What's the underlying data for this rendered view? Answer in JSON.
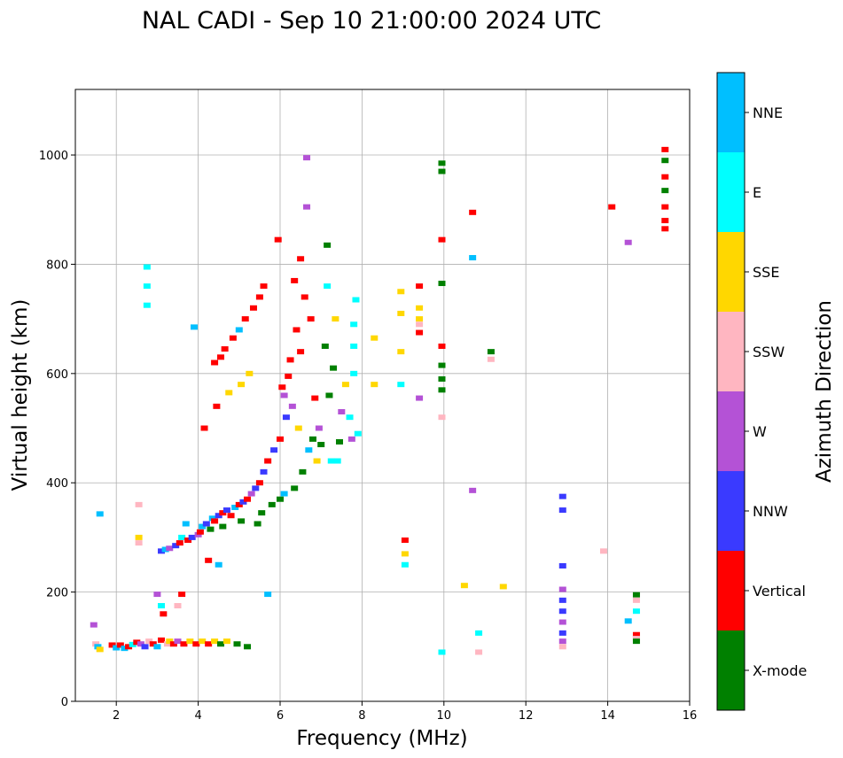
{
  "chart_data": {
    "type": "scatter",
    "title": "NAL CADI - Sep 10 21:00:00 2024 UTC",
    "xlabel": "Frequency (MHz)",
    "ylabel": "Virtual height (km)",
    "xlim": [
      1,
      16
    ],
    "ylim": [
      0,
      1120
    ],
    "xticks": [
      2,
      4,
      6,
      8,
      10,
      12,
      14,
      16
    ],
    "yticks": [
      0,
      200,
      400,
      600,
      800,
      1000
    ],
    "grid": true,
    "colorbar": {
      "label": "Azimuth Direction",
      "categories": [
        {
          "name": "X-mode",
          "color": "#008000"
        },
        {
          "name": "Vertical",
          "color": "#ff0000"
        },
        {
          "name": "NNW",
          "color": "#3a3aff"
        },
        {
          "name": "W",
          "color": "#b452d6"
        },
        {
          "name": "SSW",
          "color": "#ffb6c1"
        },
        {
          "name": "SSE",
          "color": "#ffd700"
        },
        {
          "name": "E",
          "color": "#00ffff"
        },
        {
          "name": "NNE",
          "color": "#00bfff"
        }
      ]
    },
    "points": [
      {
        "f": 1.45,
        "h": 140,
        "d": "W"
      },
      {
        "f": 1.5,
        "h": 105,
        "d": "SSW"
      },
      {
        "f": 1.55,
        "h": 100,
        "d": "NNE"
      },
      {
        "f": 1.6,
        "h": 95,
        "d": "SSE"
      },
      {
        "f": 1.6,
        "h": 343,
        "d": "NNE"
      },
      {
        "f": 1.9,
        "h": 103,
        "d": "Vertical"
      },
      {
        "f": 2.0,
        "h": 98,
        "d": "NNE"
      },
      {
        "f": 2.1,
        "h": 103,
        "d": "Vertical"
      },
      {
        "f": 2.2,
        "h": 97,
        "d": "NNE"
      },
      {
        "f": 2.3,
        "h": 100,
        "d": "Vertical"
      },
      {
        "f": 2.4,
        "h": 104,
        "d": "E"
      },
      {
        "f": 2.5,
        "h": 108,
        "d": "Vertical"
      },
      {
        "f": 2.55,
        "h": 300,
        "d": "SSE"
      },
      {
        "f": 2.55,
        "h": 290,
        "d": "SSW"
      },
      {
        "f": 2.55,
        "h": 360,
        "d": "SSW"
      },
      {
        "f": 2.6,
        "h": 105,
        "d": "W"
      },
      {
        "f": 2.7,
        "h": 100,
        "d": "NNW"
      },
      {
        "f": 2.75,
        "h": 725,
        "d": "E"
      },
      {
        "f": 2.75,
        "h": 760,
        "d": "E"
      },
      {
        "f": 2.75,
        "h": 795,
        "d": "E"
      },
      {
        "f": 2.8,
        "h": 110,
        "d": "SSW"
      },
      {
        "f": 2.9,
        "h": 105,
        "d": "Vertical"
      },
      {
        "f": 3.0,
        "h": 100,
        "d": "NNE"
      },
      {
        "f": 3.0,
        "h": 196,
        "d": "W"
      },
      {
        "f": 3.1,
        "h": 275,
        "d": "NNW"
      },
      {
        "f": 3.1,
        "h": 112,
        "d": "Vertical"
      },
      {
        "f": 3.1,
        "h": 175,
        "d": "E"
      },
      {
        "f": 3.15,
        "h": 160,
        "d": "Vertical"
      },
      {
        "f": 3.2,
        "h": 278,
        "d": "NNE"
      },
      {
        "f": 3.25,
        "h": 105,
        "d": "SSW"
      },
      {
        "f": 3.3,
        "h": 110,
        "d": "SSE"
      },
      {
        "f": 3.3,
        "h": 280,
        "d": "W"
      },
      {
        "f": 3.4,
        "h": 105,
        "d": "Vertical"
      },
      {
        "f": 3.45,
        "h": 285,
        "d": "NNW"
      },
      {
        "f": 3.5,
        "h": 110,
        "d": "W"
      },
      {
        "f": 3.5,
        "h": 175,
        "d": "SSW"
      },
      {
        "f": 3.55,
        "h": 290,
        "d": "Vertical"
      },
      {
        "f": 3.6,
        "h": 196,
        "d": "Vertical"
      },
      {
        "f": 3.6,
        "h": 300,
        "d": "E"
      },
      {
        "f": 3.65,
        "h": 105,
        "d": "Vertical"
      },
      {
        "f": 3.7,
        "h": 325,
        "d": "NNE"
      },
      {
        "f": 3.75,
        "h": 295,
        "d": "Vertical"
      },
      {
        "f": 3.8,
        "h": 110,
        "d": "SSE"
      },
      {
        "f": 3.85,
        "h": 300,
        "d": "NNW"
      },
      {
        "f": 3.9,
        "h": 685,
        "d": "NNE"
      },
      {
        "f": 3.95,
        "h": 105,
        "d": "Vertical"
      },
      {
        "f": 4.0,
        "h": 305,
        "d": "W"
      },
      {
        "f": 4.05,
        "h": 310,
        "d": "Vertical"
      },
      {
        "f": 4.1,
        "h": 110,
        "d": "SSE"
      },
      {
        "f": 4.1,
        "h": 320,
        "d": "NNE"
      },
      {
        "f": 4.15,
        "h": 500,
        "d": "Vertical"
      },
      {
        "f": 4.2,
        "h": 325,
        "d": "NNW"
      },
      {
        "f": 4.25,
        "h": 105,
        "d": "Vertical"
      },
      {
        "f": 4.25,
        "h": 258,
        "d": "Vertical"
      },
      {
        "f": 4.3,
        "h": 315,
        "d": "X-mode"
      },
      {
        "f": 4.35,
        "h": 335,
        "d": "NNE"
      },
      {
        "f": 4.4,
        "h": 110,
        "d": "SSE"
      },
      {
        "f": 4.4,
        "h": 330,
        "d": "Vertical"
      },
      {
        "f": 4.4,
        "h": 620,
        "d": "Vertical"
      },
      {
        "f": 4.45,
        "h": 540,
        "d": "Vertical"
      },
      {
        "f": 4.5,
        "h": 340,
        "d": "NNW"
      },
      {
        "f": 4.5,
        "h": 250,
        "d": "NNE"
      },
      {
        "f": 4.55,
        "h": 105,
        "d": "X-mode"
      },
      {
        "f": 4.55,
        "h": 630,
        "d": "Vertical"
      },
      {
        "f": 4.6,
        "h": 345,
        "d": "Vertical"
      },
      {
        "f": 4.6,
        "h": 320,
        "d": "X-mode"
      },
      {
        "f": 4.65,
        "h": 645,
        "d": "Vertical"
      },
      {
        "f": 4.7,
        "h": 110,
        "d": "SSE"
      },
      {
        "f": 4.7,
        "h": 350,
        "d": "NNW"
      },
      {
        "f": 4.75,
        "h": 565,
        "d": "SSE"
      },
      {
        "f": 4.8,
        "h": 340,
        "d": "Vertical"
      },
      {
        "f": 4.85,
        "h": 665,
        "d": "Vertical"
      },
      {
        "f": 4.9,
        "h": 355,
        "d": "NNE"
      },
      {
        "f": 4.95,
        "h": 105,
        "d": "X-mode"
      },
      {
        "f": 5.0,
        "h": 360,
        "d": "Vertical"
      },
      {
        "f": 5.0,
        "h": 680,
        "d": "NNE"
      },
      {
        "f": 5.05,
        "h": 330,
        "d": "X-mode"
      },
      {
        "f": 5.05,
        "h": 580,
        "d": "SSE"
      },
      {
        "f": 5.1,
        "h": 365,
        "d": "NNW"
      },
      {
        "f": 5.15,
        "h": 700,
        "d": "Vertical"
      },
      {
        "f": 5.2,
        "h": 370,
        "d": "Vertical"
      },
      {
        "f": 5.2,
        "h": 100,
        "d": "X-mode"
      },
      {
        "f": 5.25,
        "h": 600,
        "d": "SSE"
      },
      {
        "f": 5.3,
        "h": 380,
        "d": "W"
      },
      {
        "f": 5.35,
        "h": 720,
        "d": "Vertical"
      },
      {
        "f": 5.4,
        "h": 390,
        "d": "NNW"
      },
      {
        "f": 5.45,
        "h": 325,
        "d": "X-mode"
      },
      {
        "f": 5.5,
        "h": 400,
        "d": "Vertical"
      },
      {
        "f": 5.5,
        "h": 740,
        "d": "Vertical"
      },
      {
        "f": 5.55,
        "h": 345,
        "d": "X-mode"
      },
      {
        "f": 5.6,
        "h": 420,
        "d": "NNW"
      },
      {
        "f": 5.6,
        "h": 760,
        "d": "Vertical"
      },
      {
        "f": 5.7,
        "h": 196,
        "d": "NNE"
      },
      {
        "f": 5.7,
        "h": 440,
        "d": "Vertical"
      },
      {
        "f": 5.8,
        "h": 360,
        "d": "X-mode"
      },
      {
        "f": 5.85,
        "h": 460,
        "d": "NNW"
      },
      {
        "f": 5.95,
        "h": 845,
        "d": "Vertical"
      },
      {
        "f": 6.0,
        "h": 480,
        "d": "Vertical"
      },
      {
        "f": 6.0,
        "h": 370,
        "d": "X-mode"
      },
      {
        "f": 6.05,
        "h": 575,
        "d": "Vertical"
      },
      {
        "f": 6.1,
        "h": 560,
        "d": "W"
      },
      {
        "f": 6.1,
        "h": 380,
        "d": "NNE"
      },
      {
        "f": 6.15,
        "h": 520,
        "d": "NNW"
      },
      {
        "f": 6.2,
        "h": 595,
        "d": "Vertical"
      },
      {
        "f": 6.25,
        "h": 625,
        "d": "Vertical"
      },
      {
        "f": 6.3,
        "h": 540,
        "d": "W"
      },
      {
        "f": 6.35,
        "h": 390,
        "d": "X-mode"
      },
      {
        "f": 6.35,
        "h": 770,
        "d": "Vertical"
      },
      {
        "f": 6.4,
        "h": 680,
        "d": "Vertical"
      },
      {
        "f": 6.45,
        "h": 500,
        "d": "SSE"
      },
      {
        "f": 6.5,
        "h": 810,
        "d": "Vertical"
      },
      {
        "f": 6.5,
        "h": 640,
        "d": "Vertical"
      },
      {
        "f": 6.55,
        "h": 420,
        "d": "X-mode"
      },
      {
        "f": 6.6,
        "h": 740,
        "d": "Vertical"
      },
      {
        "f": 6.65,
        "h": 995,
        "d": "W"
      },
      {
        "f": 6.65,
        "h": 905,
        "d": "W"
      },
      {
        "f": 6.7,
        "h": 460,
        "d": "NNE"
      },
      {
        "f": 6.75,
        "h": 700,
        "d": "Vertical"
      },
      {
        "f": 6.8,
        "h": 480,
        "d": "X-mode"
      },
      {
        "f": 6.85,
        "h": 555,
        "d": "Vertical"
      },
      {
        "f": 6.9,
        "h": 440,
        "d": "SSE"
      },
      {
        "f": 6.95,
        "h": 500,
        "d": "W"
      },
      {
        "f": 7.0,
        "h": 470,
        "d": "X-mode"
      },
      {
        "f": 7.1,
        "h": 650,
        "d": "X-mode"
      },
      {
        "f": 7.15,
        "h": 760,
        "d": "E"
      },
      {
        "f": 7.15,
        "h": 835,
        "d": "X-mode"
      },
      {
        "f": 7.2,
        "h": 560,
        "d": "X-mode"
      },
      {
        "f": 7.25,
        "h": 440,
        "d": "E"
      },
      {
        "f": 7.3,
        "h": 610,
        "d": "X-mode"
      },
      {
        "f": 7.35,
        "h": 700,
        "d": "SSE"
      },
      {
        "f": 7.4,
        "h": 440,
        "d": "E"
      },
      {
        "f": 7.45,
        "h": 475,
        "d": "X-mode"
      },
      {
        "f": 7.5,
        "h": 530,
        "d": "W"
      },
      {
        "f": 7.6,
        "h": 580,
        "d": "SSE"
      },
      {
        "f": 7.7,
        "h": 520,
        "d": "E"
      },
      {
        "f": 7.75,
        "h": 480,
        "d": "W"
      },
      {
        "f": 7.8,
        "h": 600,
        "d": "E"
      },
      {
        "f": 7.8,
        "h": 650,
        "d": "E"
      },
      {
        "f": 7.8,
        "h": 690,
        "d": "E"
      },
      {
        "f": 7.85,
        "h": 735,
        "d": "E"
      },
      {
        "f": 7.9,
        "h": 490,
        "d": "E"
      },
      {
        "f": 8.3,
        "h": 580,
        "d": "SSE"
      },
      {
        "f": 8.3,
        "h": 665,
        "d": "SSE"
      },
      {
        "f": 8.95,
        "h": 640,
        "d": "SSE"
      },
      {
        "f": 8.95,
        "h": 710,
        "d": "SSE"
      },
      {
        "f": 8.95,
        "h": 750,
        "d": "SSE"
      },
      {
        "f": 8.95,
        "h": 580,
        "d": "E"
      },
      {
        "f": 9.05,
        "h": 295,
        "d": "Vertical"
      },
      {
        "f": 9.05,
        "h": 270,
        "d": "SSE"
      },
      {
        "f": 9.05,
        "h": 250,
        "d": "E"
      },
      {
        "f": 9.4,
        "h": 760,
        "d": "Vertical"
      },
      {
        "f": 9.4,
        "h": 720,
        "d": "SSE"
      },
      {
        "f": 9.4,
        "h": 700,
        "d": "SSE"
      },
      {
        "f": 9.4,
        "h": 690,
        "d": "SSW"
      },
      {
        "f": 9.4,
        "h": 675,
        "d": "Vertical"
      },
      {
        "f": 9.4,
        "h": 555,
        "d": "W"
      },
      {
        "f": 9.95,
        "h": 985,
        "d": "X-mode"
      },
      {
        "f": 9.95,
        "h": 970,
        "d": "X-mode"
      },
      {
        "f": 9.95,
        "h": 845,
        "d": "Vertical"
      },
      {
        "f": 9.95,
        "h": 765,
        "d": "X-mode"
      },
      {
        "f": 9.95,
        "h": 650,
        "d": "Vertical"
      },
      {
        "f": 9.95,
        "h": 615,
        "d": "X-mode"
      },
      {
        "f": 9.95,
        "h": 590,
        "d": "X-mode"
      },
      {
        "f": 9.95,
        "h": 570,
        "d": "X-mode"
      },
      {
        "f": 9.95,
        "h": 520,
        "d": "SSW"
      },
      {
        "f": 9.95,
        "h": 90,
        "d": "E"
      },
      {
        "f": 10.5,
        "h": 212,
        "d": "SSE"
      },
      {
        "f": 10.7,
        "h": 895,
        "d": "Vertical"
      },
      {
        "f": 10.7,
        "h": 812,
        "d": "NNE"
      },
      {
        "f": 10.7,
        "h": 386,
        "d": "W"
      },
      {
        "f": 10.85,
        "h": 125,
        "d": "E"
      },
      {
        "f": 10.85,
        "h": 90,
        "d": "SSW"
      },
      {
        "f": 11.15,
        "h": 640,
        "d": "X-mode"
      },
      {
        "f": 11.15,
        "h": 626,
        "d": "SSW"
      },
      {
        "f": 11.45,
        "h": 210,
        "d": "SSE"
      },
      {
        "f": 12.9,
        "h": 375,
        "d": "NNW"
      },
      {
        "f": 12.9,
        "h": 350,
        "d": "NNW"
      },
      {
        "f": 12.9,
        "h": 248,
        "d": "NNW"
      },
      {
        "f": 12.9,
        "h": 205,
        "d": "W"
      },
      {
        "f": 12.9,
        "h": 185,
        "d": "NNW"
      },
      {
        "f": 12.9,
        "h": 165,
        "d": "NNW"
      },
      {
        "f": 12.9,
        "h": 145,
        "d": "W"
      },
      {
        "f": 12.9,
        "h": 125,
        "d": "NNW"
      },
      {
        "f": 12.9,
        "h": 110,
        "d": "W"
      },
      {
        "f": 12.9,
        "h": 100,
        "d": "SSW"
      },
      {
        "f": 13.9,
        "h": 275,
        "d": "SSW"
      },
      {
        "f": 14.1,
        "h": 905,
        "d": "Vertical"
      },
      {
        "f": 14.5,
        "h": 840,
        "d": "W"
      },
      {
        "f": 14.5,
        "h": 147,
        "d": "NNE"
      },
      {
        "f": 14.7,
        "h": 195,
        "d": "X-mode"
      },
      {
        "f": 14.7,
        "h": 185,
        "d": "SSW"
      },
      {
        "f": 14.7,
        "h": 165,
        "d": "E"
      },
      {
        "f": 14.7,
        "h": 122,
        "d": "Vertical"
      },
      {
        "f": 14.7,
        "h": 115,
        "d": "SSW"
      },
      {
        "f": 14.7,
        "h": 110,
        "d": "X-mode"
      },
      {
        "f": 15.4,
        "h": 1010,
        "d": "Vertical"
      },
      {
        "f": 15.4,
        "h": 990,
        "d": "X-mode"
      },
      {
        "f": 15.4,
        "h": 960,
        "d": "Vertical"
      },
      {
        "f": 15.4,
        "h": 935,
        "d": "X-mode"
      },
      {
        "f": 15.4,
        "h": 905,
        "d": "Vertical"
      },
      {
        "f": 15.4,
        "h": 880,
        "d": "Vertical"
      },
      {
        "f": 15.4,
        "h": 865,
        "d": "Vertical"
      }
    ]
  }
}
